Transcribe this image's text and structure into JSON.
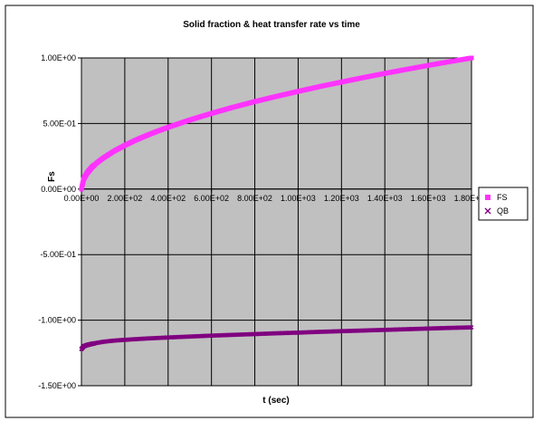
{
  "chart_data": {
    "type": "scatter",
    "title": "Solid fraction & heat transfer rate vs time",
    "xlabel": "t (sec)",
    "ylabel": "Fs",
    "xlim": [
      0,
      1800
    ],
    "ylim": [
      -1.5,
      1.0
    ],
    "x_ticks": [
      "0.00E+00",
      "2.00E+02",
      "4.00E+02",
      "6.00E+02",
      "8.00E+02",
      "1.00E+03",
      "1.20E+03",
      "1.40E+03",
      "1.60E+03",
      "1.80E+03"
    ],
    "x_tick_values": [
      0,
      200,
      400,
      600,
      800,
      1000,
      1200,
      1400,
      1600,
      1800
    ],
    "y_ticks": [
      "1.00E+00",
      "5.00E-01",
      "0.00E+00",
      "-5.00E-01",
      "-1.00E+00",
      "-1.50E+00"
    ],
    "y_tick_values": [
      1.0,
      0.5,
      0.0,
      -0.5,
      -1.0,
      -1.5
    ],
    "grid": true,
    "legend_position": "right",
    "plot_background": "#c0c0c0",
    "series": [
      {
        "name": "FS",
        "marker": "square",
        "color": "#ff33ff",
        "x": [
          0,
          10,
          25,
          50,
          75,
          100,
          150,
          200,
          250,
          300,
          350,
          400,
          500,
          600,
          700,
          800,
          900,
          1000,
          1100,
          1200,
          1300,
          1400,
          1500,
          1600,
          1700,
          1800
        ],
        "y": [
          0.0,
          0.075,
          0.12,
          0.17,
          0.205,
          0.236,
          0.289,
          0.333,
          0.373,
          0.408,
          0.441,
          0.471,
          0.527,
          0.577,
          0.624,
          0.667,
          0.707,
          0.745,
          0.782,
          0.816,
          0.85,
          0.882,
          0.913,
          0.943,
          0.972,
          1.0
        ]
      },
      {
        "name": "QB",
        "marker": "x",
        "color": "#800080",
        "x": [
          0,
          10,
          25,
          50,
          75,
          100,
          150,
          200,
          300,
          400,
          500,
          600,
          700,
          800,
          900,
          1000,
          1100,
          1200,
          1300,
          1400,
          1500,
          1600,
          1700,
          1800
        ],
        "y": [
          -1.22,
          -1.2,
          -1.19,
          -1.18,
          -1.172,
          -1.165,
          -1.156,
          -1.15,
          -1.14,
          -1.132,
          -1.125,
          -1.118,
          -1.112,
          -1.106,
          -1.1,
          -1.095,
          -1.089,
          -1.084,
          -1.079,
          -1.074,
          -1.069,
          -1.064,
          -1.059,
          -1.055
        ]
      }
    ]
  }
}
